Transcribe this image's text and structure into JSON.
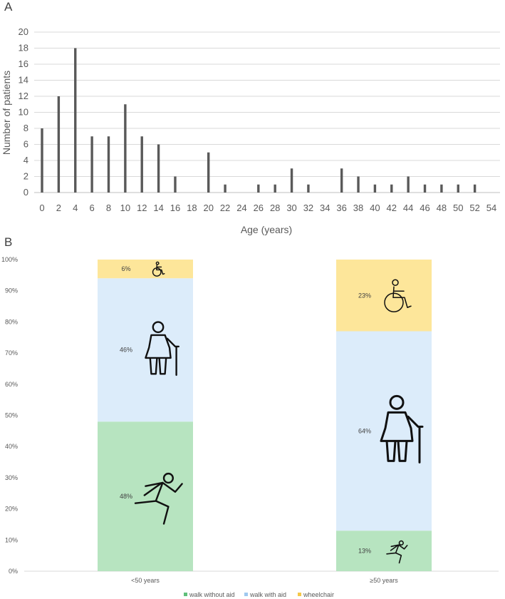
{
  "panels": {
    "a_letter": "A",
    "b_letter": "B"
  },
  "colors": {
    "bar": "#595959",
    "grid": "#d9d9d9",
    "walk_without_aid": "#b7e4c0",
    "walk_with_aid": "#dcecfa",
    "wheelchair": "#fde69a",
    "legend_walk_without_aid": "#5fbf7a",
    "legend_walk_with_aid": "#9fc8ef",
    "legend_wheelchair": "#f5c84a"
  },
  "chart_data": [
    {
      "type": "bar",
      "xlabel": "Age (years)",
      "ylabel": "Number of patients",
      "ylim": [
        0,
        20
      ],
      "yticks": [
        "0",
        "2",
        "4",
        "6",
        "8",
        "10",
        "12",
        "14",
        "16",
        "18",
        "20"
      ],
      "xticks": [
        "0",
        "2",
        "4",
        "6",
        "8",
        "10",
        "12",
        "14",
        "16",
        "18",
        "20",
        "22",
        "24",
        "26",
        "28",
        "30",
        "32",
        "34",
        "36",
        "38",
        "40",
        "42",
        "44",
        "46",
        "48",
        "50",
        "52",
        "54"
      ],
      "xrange": [
        0,
        54
      ],
      "grid": true,
      "x": [
        0,
        2,
        4,
        6,
        8,
        10,
        12,
        14,
        16,
        20,
        22,
        26,
        28,
        30,
        32,
        36,
        38,
        40,
        42,
        44,
        46,
        48,
        50,
        52
      ],
      "values": [
        8,
        12,
        18,
        7,
        7,
        11,
        7,
        6,
        2,
        5,
        1,
        1,
        1,
        3,
        1,
        3,
        2,
        1,
        1,
        2,
        1,
        1,
        1,
        1
      ]
    },
    {
      "type": "bar",
      "stacked": true,
      "percent": true,
      "ylim": [
        0,
        100
      ],
      "yticks": [
        "0%",
        "10%",
        "20%",
        "30%",
        "40%",
        "50%",
        "60%",
        "70%",
        "80%",
        "90%",
        "100%"
      ],
      "categories": [
        "<50 years",
        "≥50 years"
      ],
      "series": [
        {
          "name": "walk without aid",
          "values": [
            48,
            13
          ],
          "labels": [
            "48%",
            "13%"
          ],
          "color": "#b7e4c0",
          "icon": "running-person-icon"
        },
        {
          "name": "walk with aid",
          "values": [
            46,
            64
          ],
          "labels": [
            "46%",
            "64%"
          ],
          "color": "#dcecfa",
          "icon": "person-with-cane-icon"
        },
        {
          "name": "wheelchair",
          "values": [
            6,
            23
          ],
          "labels": [
            "6%",
            "23%"
          ],
          "color": "#fde69a",
          "icon": "wheelchair-icon"
        }
      ],
      "legend_position": "bottom"
    }
  ]
}
